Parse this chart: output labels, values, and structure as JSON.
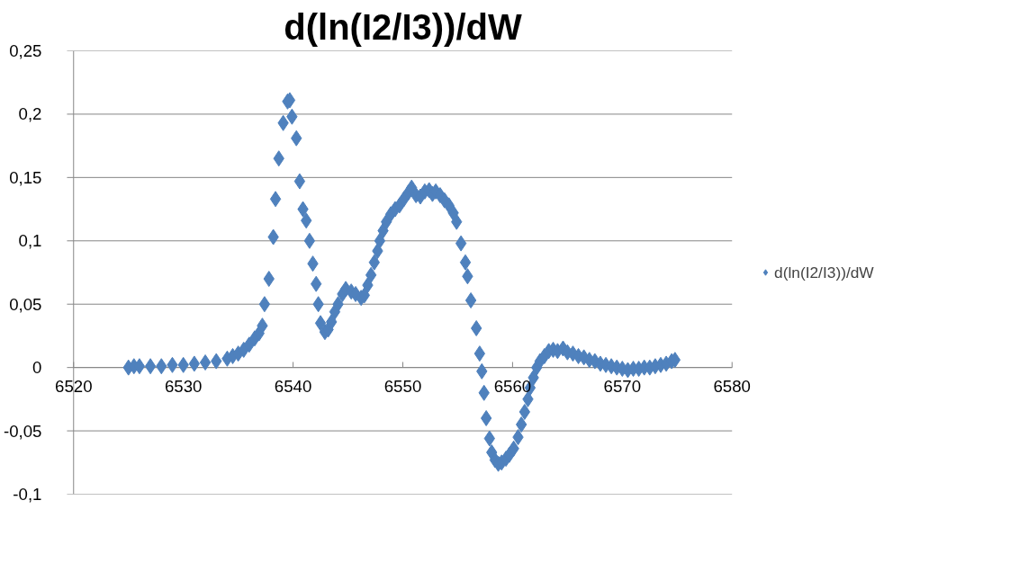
{
  "chart_data": {
    "type": "scatter",
    "title": "d(ln(I2/I3))/dW",
    "x": [
      6525,
      6525.5,
      6526,
      6527,
      6528,
      6529,
      6530,
      6531,
      6532,
      6533,
      6534,
      6534.5,
      6535,
      6535.5,
      6536,
      6536.5,
      6536.9,
      6537.2,
      6537.4,
      6537.8,
      6538.2,
      6538.4,
      6538.7,
      6539.1,
      6539.5,
      6539.7,
      6539.9,
      6540.3,
      6540.6,
      6540.9,
      6541.2,
      6541.5,
      6541.8,
      6542.1,
      6542.3,
      6542.5,
      6542.9,
      6543.2,
      6543.5,
      6543.8,
      6544.1,
      6544.5,
      6544.8,
      6545.3,
      6545.7,
      6546.2,
      6546.5,
      6546.8,
      6547.1,
      6547.4,
      6547.7,
      6547.9,
      6548.2,
      6548.5,
      6548.9,
      6549.3,
      6549.7,
      6550.1,
      6550.5,
      6550.8,
      6551.2,
      6551.6,
      6552.0,
      6552.4,
      6552.7,
      6553.0,
      6553.4,
      6553.8,
      6554.2,
      6554.6,
      6554.9,
      6555.3,
      6555.7,
      6555.9,
      6556.2,
      6556.7,
      6557.0,
      6557.2,
      6557.4,
      6557.6,
      6557.9,
      6558.1,
      6558.4,
      6558.7,
      6559.0,
      6559.4,
      6559.7,
      6560.1,
      6560.5,
      6560.8,
      6561.1,
      6561.4,
      6561.6,
      6561.9,
      6562.2,
      6562.5,
      6562.9,
      6563.3,
      6563.7,
      6564.1,
      6564.6,
      6565.0,
      6565.5,
      6566.0,
      6566.5,
      6567.0,
      6567.5,
      6568.0,
      6568.5,
      6569,
      6569.5,
      6570,
      6570.5,
      6571,
      6571.5,
      6572,
      6572.5,
      6573,
      6573.5,
      6574,
      6574.5,
      6574.8
    ],
    "series": [
      {
        "name": "d(ln(I2/I3))/dW",
        "color": "#4f81bd",
        "values": [
          0,
          0.001,
          0.001,
          0.001,
          0.001,
          0.002,
          0.002,
          0.003,
          0.004,
          0.005,
          0.007,
          0.009,
          0.011,
          0.014,
          0.018,
          0.023,
          0.027,
          0.033,
          0.05,
          0.07,
          0.103,
          0.133,
          0.165,
          0.193,
          0.21,
          0.211,
          0.198,
          0.181,
          0.147,
          0.125,
          0.116,
          0.1,
          0.082,
          0.066,
          0.05,
          0.035,
          0.028,
          0.03,
          0.036,
          0.044,
          0.05,
          0.058,
          0.062,
          0.06,
          0.058,
          0.055,
          0.057,
          0.065,
          0.073,
          0.083,
          0.092,
          0.1,
          0.108,
          0.115,
          0.121,
          0.125,
          0.128,
          0.133,
          0.138,
          0.142,
          0.136,
          0.135,
          0.139,
          0.14,
          0.137,
          0.139,
          0.136,
          0.132,
          0.128,
          0.122,
          0.115,
          0.098,
          0.083,
          0.072,
          0.053,
          0.031,
          0.011,
          -0.003,
          -0.02,
          -0.04,
          -0.056,
          -0.067,
          -0.073,
          -0.076,
          -0.075,
          -0.072,
          -0.069,
          -0.064,
          -0.055,
          -0.045,
          -0.035,
          -0.025,
          -0.016,
          -0.008,
          0,
          0.005,
          0.009,
          0.013,
          0.014,
          0.013,
          0.015,
          0.012,
          0.011,
          0.009,
          0.008,
          0.006,
          0.005,
          0.003,
          0.002,
          0.001,
          0,
          -0.001,
          -0.002,
          -0.001,
          -0.001,
          0,
          0,
          0.001,
          0.002,
          0.003,
          0.005,
          0.006
        ]
      }
    ],
    "xlim": [
      6520,
      6580
    ],
    "xticks": [
      {
        "value": 6520,
        "label": "6520"
      },
      {
        "value": 6530,
        "label": "6530"
      },
      {
        "value": 6540,
        "label": "6540"
      },
      {
        "value": 6550,
        "label": "6550"
      },
      {
        "value": 6560,
        "label": "6560"
      },
      {
        "value": 6570,
        "label": "6570"
      },
      {
        "value": 6580,
        "label": "6580"
      }
    ],
    "ylim": [
      -0.1,
      0.25
    ],
    "yticks": [
      {
        "value": -0.1,
        "label": "-0,1"
      },
      {
        "value": -0.05,
        "label": "-0,05"
      },
      {
        "value": 0,
        "label": "0"
      },
      {
        "value": 0.05,
        "label": "0,05"
      },
      {
        "value": 0.1,
        "label": "0,1"
      },
      {
        "value": 0.15,
        "label": "0,15"
      },
      {
        "value": 0.2,
        "label": "0,2"
      },
      {
        "value": 0.25,
        "label": "0,25"
      }
    ],
    "grid": "y",
    "legend": "right",
    "marker": "diamond"
  }
}
